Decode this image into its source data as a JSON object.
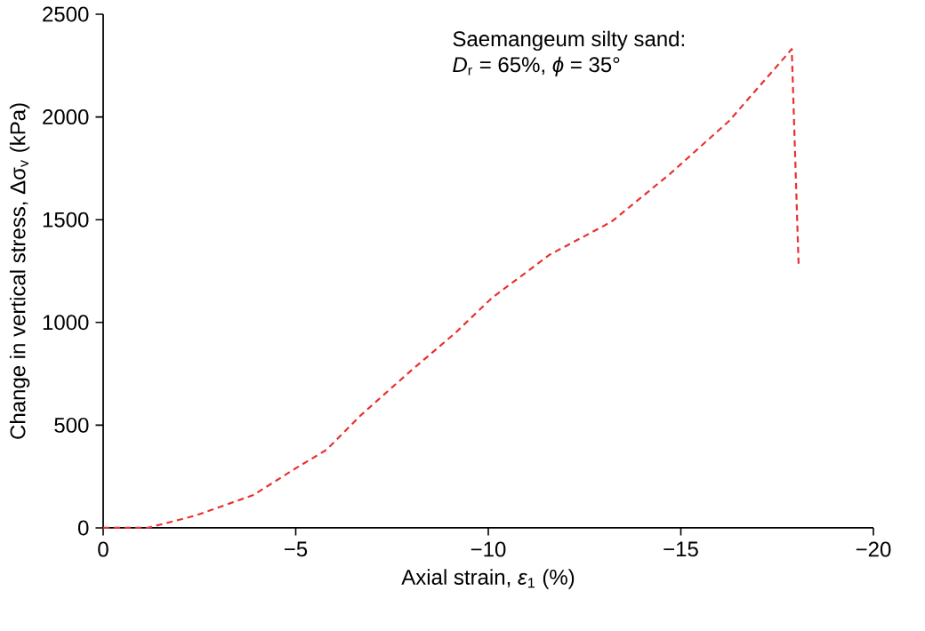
{
  "chart_data": {
    "type": "line",
    "xlabel": "Axial strain, *ε*$_{1}$ (%)",
    "ylabel": "Change in vertical stress, Δσ$_{v}$ (kPa)",
    "annotations": [
      "Saemangeum silty sand:",
      "*D*$_{r}$ = 65%, *ϕ* = 35°"
    ],
    "xlim": [
      0,
      -20
    ],
    "xticks": [
      0,
      {
        "value": -5,
        "label": "−5"
      },
      {
        "value": -10,
        "label": "−10"
      },
      {
        "value": -15,
        "label": "−15"
      },
      {
        "value": -20,
        "label": "−20"
      }
    ],
    "ylim": [
      0,
      2500
    ],
    "yticks": [
      0,
      500,
      1000,
      1500,
      2000,
      2500
    ],
    "x": [
      0,
      -1.15,
      -2.4,
      -3.9,
      -5.0,
      -5.8,
      -6.7,
      -7.9,
      -9.15,
      -10.1,
      -11.6,
      -13.2,
      -14.7,
      -16.25,
      -17.88,
      -18.06
    ],
    "series": [
      {
        "color": "#e8312f",
        "values": [
          0,
          0,
          60,
          160,
          290,
          380,
          550,
          750,
          950,
          1120,
          1330,
          1490,
          1720,
          1980,
          2330,
          1270
        ]
      }
    ],
    "line_style": "dashed",
    "marker": "none",
    "grid": false
  }
}
